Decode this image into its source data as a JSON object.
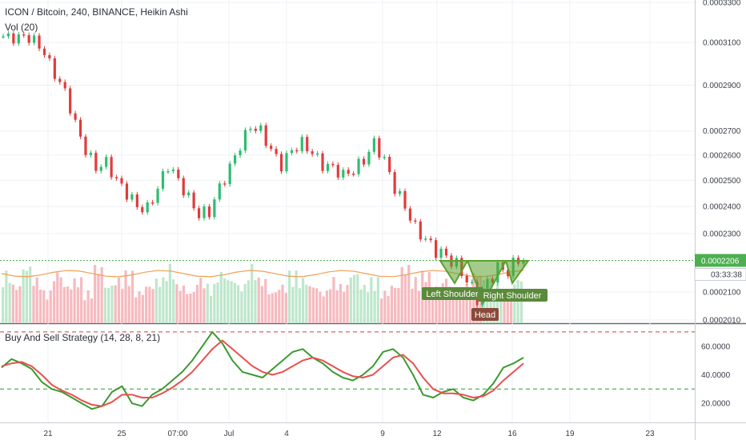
{
  "header": {
    "symbol_line": "ICON / Bitcoin, 240, BINANCE, Heikin Ashi",
    "volume_label": "Vol (20)",
    "oscillator_label": "Buy And Sell Strategy (14, 28, 8, 21)"
  },
  "price_badge": {
    "value": "0.0002206",
    "countdown": "03:33:38",
    "color": "#4caf50"
  },
  "annotations": {
    "left_shoulder": "Left Shoulder",
    "head": "Head",
    "right_shoulder": "Right Shoulder"
  },
  "colors": {
    "up": "#2ebd70",
    "down": "#e03c3c",
    "vol_up": "#b7e4c7",
    "vol_down": "#f5b3b8",
    "fast_line": "#3a9a2e",
    "slow_line": "#e85050",
    "pattern": "#5aa02c"
  },
  "chart_data": [
    {
      "type": "candlestick",
      "title": "ICON / Bitcoin, 240, BINANCE, Heikin Ashi",
      "y_ticks": [
        "0.0003300",
        "0.0003100",
        "0.0002900",
        "0.0002700",
        "0.0002600",
        "0.0002500",
        "0.0002400",
        "0.0002300",
        "0.0002100",
        "0.0002010"
      ],
      "y_scale": "log",
      "x_ticks": [
        "21",
        "25",
        "07:00",
        "Jul",
        "4",
        "9",
        "12",
        "16",
        "19",
        "23"
      ],
      "last_price": "0.0002206",
      "close_trend": [
        0.000313,
        0.000312,
        0.000313,
        0.000311,
        0.000305,
        0.000295,
        0.000287,
        0.000273,
        0.000262,
        0.000255,
        0.000257,
        0.00025,
        0.000245,
        0.00024,
        0.000239,
        0.000247,
        0.000256,
        0.00025,
        0.000243,
        0.000237,
        0.000238,
        0.000247,
        0.000255,
        0.000264,
        0.000272,
        0.00027,
        0.000262,
        0.000256,
        0.000262,
        0.000265,
        0.000261,
        0.000256,
        0.000255,
        0.000252,
        0.000254,
        0.000258,
        0.000265,
        0.000258,
        0.000247,
        0.00024,
        0.000232,
        0.000228,
        0.000224,
        0.000222,
        0.000219,
        0.000214,
        0.000208,
        0.000213,
        0.000218,
        0.000217,
        0.000221
      ]
    },
    {
      "type": "bar",
      "title": "Vol (20)",
      "values_relative": [
        0.8,
        0.6,
        0.9,
        0.7,
        0.5,
        0.8,
        0.6,
        0.7,
        0.5,
        0.9,
        0.6,
        0.7,
        0.8,
        0.5,
        0.6,
        0.7,
        0.9,
        0.6,
        0.5,
        0.7,
        0.6,
        0.8,
        0.7,
        0.6,
        0.9,
        0.7,
        0.5,
        0.6,
        0.8,
        0.7,
        0.6,
        0.5,
        0.7,
        0.6,
        0.8,
        0.6,
        0.7,
        0.5,
        0.6,
        0.9,
        0.7,
        0.8,
        0.6,
        0.7,
        0.5,
        0.6,
        0.8,
        0.7,
        0.6,
        0.5,
        0.7
      ]
    },
    {
      "type": "line",
      "title": "Buy And Sell Strategy (14, 28, 8, 21)",
      "y_ticks": [
        "60.0000",
        "40.0000",
        "20.0000"
      ],
      "ylim": [
        10,
        75
      ],
      "hlines": [
        70,
        30
      ],
      "series": [
        {
          "values": [
            45,
            51,
            48,
            44,
            35,
            30,
            28,
            24,
            20,
            16,
            18,
            28,
            32,
            20,
            18,
            26,
            30,
            36,
            42,
            50,
            60,
            70,
            62,
            50,
            42,
            40,
            38,
            44,
            50,
            56,
            58,
            52,
            48,
            42,
            38,
            36,
            40,
            46,
            56,
            58,
            52,
            40,
            26,
            24,
            28,
            30,
            24,
            22,
            26,
            34,
            45,
            48,
            52
          ]
        },
        {
          "values": [
            46,
            48,
            49,
            46,
            40,
            33,
            29,
            26,
            22,
            19,
            18,
            21,
            26,
            26,
            24,
            24,
            27,
            31,
            36,
            42,
            50,
            58,
            64,
            58,
            52,
            46,
            42,
            40,
            42,
            46,
            50,
            52,
            50,
            46,
            42,
            39,
            38,
            40,
            46,
            52,
            54,
            48,
            38,
            30,
            27,
            27,
            26,
            24,
            25,
            29,
            36,
            42,
            48
          ]
        }
      ]
    }
  ]
}
